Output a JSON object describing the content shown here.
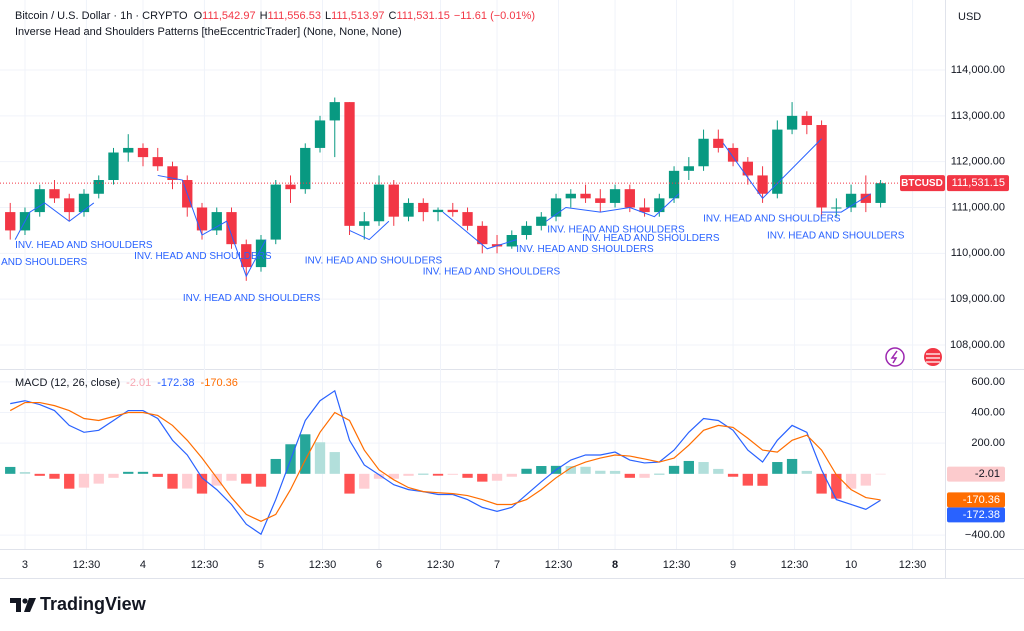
{
  "chart_data": [
    {
      "type": "candlestick",
      "title": "Bitcoin / U.S. Dollar · 1h · CRYPTO",
      "ohlc_legend": [
        {
          "key": "O",
          "text": "111,542.97"
        },
        {
          "key": "H",
          "text": "111,556.53"
        },
        {
          "key": "L",
          "text": "111,513.97"
        },
        {
          "key": "C",
          "text": "111,531.15"
        }
      ],
      "change": "−11.61 (−0.01%)",
      "subtitle": "Inverse Head and Shoulders Patterns [theEccentricTrader] (None, None, None)",
      "currency": "USD",
      "symbol": "BTCUSD",
      "last_label": "111,531.15",
      "up_color": "#089981",
      "down_color": "#f23645",
      "x": [
        -3,
        0,
        3,
        6,
        9,
        12,
        15,
        18,
        21,
        24,
        27,
        30,
        33,
        36,
        39,
        42,
        45,
        48,
        51,
        54,
        57,
        60,
        63,
        66,
        69,
        72,
        75,
        78,
        81,
        84,
        87,
        90,
        93,
        96,
        99,
        102,
        105,
        108,
        111,
        114,
        117,
        120,
        123,
        126,
        129,
        132,
        135,
        138,
        141,
        144,
        147,
        150,
        153,
        156,
        159,
        162,
        165,
        168,
        171,
        174
      ],
      "open": [
        110900,
        110500,
        110900,
        111400,
        111200,
        110900,
        111300,
        111600,
        112200,
        112300,
        112100,
        111900,
        111600,
        111000,
        110500,
        110900,
        110200,
        109700,
        110300,
        111500,
        111400,
        112300,
        112900,
        113300,
        110600,
        110700,
        111500,
        110800,
        111100,
        110900,
        110950,
        110900,
        110600,
        110200,
        110150,
        110400,
        110600,
        110800,
        111200,
        111300,
        111200,
        111100,
        111400,
        111000,
        110900,
        111200,
        111800,
        111900,
        112500,
        112300,
        112000,
        111700,
        111300,
        112700,
        113000,
        112800,
        111000,
        111000,
        111300,
        111100
      ],
      "high": [
        111100,
        111000,
        111500,
        111600,
        111300,
        111400,
        111700,
        112300,
        112600,
        112400,
        112300,
        112000,
        111700,
        111100,
        111000,
        111000,
        110300,
        110400,
        111600,
        111700,
        112400,
        113000,
        113400,
        113300,
        110900,
        111700,
        111600,
        111200,
        111200,
        111000,
        111100,
        111000,
        110700,
        110400,
        110500,
        110700,
        110900,
        111300,
        111400,
        111500,
        111400,
        111500,
        111500,
        111200,
        111300,
        111900,
        112100,
        112700,
        112700,
        112400,
        112100,
        111900,
        112900,
        113300,
        113100,
        112900,
        111200,
        111500,
        111700,
        111600
      ],
      "low": [
        110300,
        110400,
        110800,
        111100,
        110700,
        110800,
        111200,
        111500,
        112000,
        111900,
        111800,
        111400,
        110800,
        110300,
        110400,
        110100,
        109400,
        109600,
        110200,
        111100,
        111300,
        112200,
        112100,
        110400,
        110300,
        110600,
        110600,
        110700,
        110700,
        110700,
        110800,
        110500,
        110000,
        110000,
        110100,
        110300,
        110500,
        110700,
        111000,
        111100,
        110900,
        111000,
        110900,
        110800,
        110800,
        111100,
        111600,
        111800,
        112200,
        111900,
        111500,
        111100,
        111200,
        112600,
        112600,
        110800,
        110800,
        110900,
        110900,
        111000
      ],
      "close": [
        110500,
        110900,
        111400,
        111200,
        110900,
        111300,
        111600,
        112200,
        112300,
        112100,
        111900,
        111600,
        111000,
        110500,
        110900,
        110200,
        109700,
        110300,
        111500,
        111400,
        112300,
        112900,
        113300,
        110600,
        110700,
        111500,
        110800,
        111100,
        110900,
        110950,
        110900,
        110600,
        110200,
        110150,
        110400,
        110600,
        110800,
        111200,
        111300,
        111200,
        111100,
        111400,
        111000,
        110900,
        111200,
        111800,
        111900,
        112500,
        112300,
        112000,
        111700,
        111300,
        112700,
        113000,
        112800,
        111000,
        111000,
        111300,
        111100,
        111531.15
      ],
      "ylim": [
        107498,
        115528
      ],
      "yticks": [
        {
          "value": 108000,
          "label": "108,000.00"
        },
        {
          "value": 109000,
          "label": "109,000.00"
        },
        {
          "value": 110000,
          "label": "110,000.00"
        },
        {
          "value": 111000,
          "label": "111,000.00"
        },
        {
          "value": 112000,
          "label": "112,000.00"
        },
        {
          "value": 113000,
          "label": "113,000.00"
        },
        {
          "value": 114000,
          "label": "114,000.00"
        }
      ],
      "annotation_color": "#2962ff",
      "annotations": [
        {
          "text": "INV. HEAD AND SHOULDERS",
          "x": -2.0,
          "y": 110170
        },
        {
          "text": "INV. HEAD AND SHOULDERS",
          "x": -15.3,
          "y": 109800
        },
        {
          "text": "INV. HEAD AND SHOULDERS",
          "x": 22.2,
          "y": 109930
        },
        {
          "text": "INV. HEAD AND SHOULDERS",
          "x": 32.1,
          "y": 109020
        },
        {
          "text": "INV. HEAD AND SHOULDERS",
          "x": 56.9,
          "y": 109840
        },
        {
          "text": "INV. HEAD AND SHOULDERS",
          "x": 80.9,
          "y": 109600
        },
        {
          "text": "INV. HEAD AND SHOULDERS",
          "x": 99.9,
          "y": 110090
        },
        {
          "text": "INV. HEAD AND SHOULDERS",
          "x": 106.2,
          "y": 110510
        },
        {
          "text": "INV. HEAD AND SHOULDERS",
          "x": 113.3,
          "y": 110330
        },
        {
          "text": "INV. HEAD AND SHOULDERS",
          "x": 137.9,
          "y": 110750
        },
        {
          "text": "INV. HEAD AND SHOULDERS",
          "x": 150.9,
          "y": 110380
        }
      ],
      "pattern_lines": [
        [
          [
            -2,
            110300
          ],
          [
            1,
            110900
          ],
          [
            4,
            111100
          ],
          [
            9,
            110700
          ],
          [
            14,
            111100
          ]
        ],
        [
          [
            27,
            111700
          ],
          [
            32,
            111600
          ],
          [
            36,
            110400
          ],
          [
            41,
            110700
          ],
          [
            45,
            109500
          ],
          [
            49,
            110300
          ]
        ],
        [
          [
            66,
            110500
          ],
          [
            70,
            110300
          ],
          [
            74,
            110700
          ]
        ],
        [
          [
            85,
            110900
          ],
          [
            94,
            110100
          ],
          [
            100,
            110300
          ]
        ],
        [
          [
            106,
            110700
          ],
          [
            110,
            111000
          ],
          [
            117,
            110900
          ],
          [
            123,
            111000
          ],
          [
            128,
            110800
          ],
          [
            133,
            111300
          ]
        ],
        [
          [
            142,
            112400
          ],
          [
            150,
            111200
          ],
          [
            162,
            112500
          ]
        ],
        [
          [
            162,
            110900
          ],
          [
            166,
            110900
          ],
          [
            172,
            111300
          ]
        ]
      ]
    },
    {
      "type": "macd",
      "title": "MACD (12, 26, close)",
      "x": [
        -3,
        0,
        3,
        6,
        9,
        12,
        15,
        18,
        21,
        24,
        27,
        30,
        33,
        36,
        39,
        42,
        45,
        48,
        51,
        54,
        57,
        60,
        63,
        66,
        69,
        72,
        75,
        78,
        81,
        84,
        87,
        90,
        93,
        96,
        99,
        102,
        105,
        108,
        111,
        114,
        117,
        120,
        123,
        126,
        129,
        132,
        135,
        138,
        141,
        144,
        147,
        150,
        153,
        156,
        159,
        162,
        165,
        168,
        171,
        174
      ],
      "series": [
        {
          "kind": "histogram",
          "colors": [
            "#26a69a",
            "#b2dfdb",
            "#ffcdd2",
            "#ff5252"
          ],
          "color": "#f7a9b4",
          "last_label": "-2.01",
          "values": [
            45,
            12,
            -13,
            -32,
            -97,
            -90,
            -64,
            -26,
            13,
            13,
            -20,
            -97,
            -96,
            -129,
            -77,
            -45,
            -64,
            -84,
            97,
            193,
            258,
            206,
            142,
            -129,
            -97,
            -32,
            -32,
            -13,
            0,
            -12,
            -6,
            -26,
            -51,
            -45,
            -19,
            33,
            51,
            52,
            51,
            46,
            20,
            19,
            -26,
            -26,
            0,
            52,
            84,
            77,
            32,
            -19,
            -77,
            -78,
            77,
            97,
            19,
            -129,
            -162,
            -97,
            -77,
            -2.01
          ]
        },
        {
          "kind": "line",
          "color": "#2962ff",
          "last_label": "-172.38",
          "values": [
            458,
            477,
            452,
            413,
            316,
            271,
            284,
            348,
            413,
            413,
            361,
            219,
            123,
            -26,
            -103,
            -200,
            -329,
            -394,
            -168,
            90,
            348,
            477,
            542,
            219,
            58,
            -6,
            -71,
            -103,
            -116,
            -135,
            -135,
            -168,
            -219,
            -245,
            -219,
            -135,
            -52,
            26,
            90,
            123,
            123,
            142,
            90,
            71,
            77,
            155,
            271,
            361,
            348,
            284,
            155,
            77,
            219,
            316,
            271,
            26,
            -168,
            -200,
            -232,
            -172.38
          ]
        },
        {
          "kind": "line",
          "color": "#ff6d00",
          "last_label": "-170.36",
          "values": [
            413,
            465,
            465,
            445,
            413,
            361,
            348,
            374,
            400,
            400,
            381,
            316,
            219,
            103,
            -26,
            -155,
            -265,
            -310,
            -265,
            -103,
            90,
            271,
            400,
            348,
            155,
            26,
            -39,
            -90,
            -116,
            -123,
            -129,
            -142,
            -168,
            -200,
            -200,
            -168,
            -103,
            -26,
            39,
            77,
            103,
            123,
            116,
            97,
            77,
            103,
            187,
            284,
            316,
            303,
            232,
            155,
            142,
            219,
            252,
            155,
            -6,
            -103,
            -155,
            -170.36
          ]
        }
      ],
      "ylim": [
        -484,
        671
      ],
      "yticks": [
        {
          "value": -400,
          "label": "−400.00"
        },
        {
          "value": 200,
          "label": "200.00"
        },
        {
          "value": 400,
          "label": "400.00"
        },
        {
          "value": 600,
          "label": "600.00"
        }
      ],
      "xlim": [
        -5.08,
        187.1
      ],
      "xticks": [
        {
          "value": 0,
          "label": "3"
        },
        {
          "value": 12.5,
          "label": "12:30"
        },
        {
          "value": 24,
          "label": "4"
        },
        {
          "value": 36.5,
          "label": "12:30"
        },
        {
          "value": 48,
          "label": "5"
        },
        {
          "value": 60.5,
          "label": "12:30"
        },
        {
          "value": 72,
          "label": "6"
        },
        {
          "value": 84.5,
          "label": "12:30"
        },
        {
          "value": 96,
          "label": "7"
        },
        {
          "value": 108.5,
          "label": "12:30"
        },
        {
          "value": 120,
          "label": "8",
          "bold": true
        },
        {
          "value": 132.5,
          "label": "12:30"
        },
        {
          "value": 144,
          "label": "9"
        },
        {
          "value": 156.5,
          "label": "12:30"
        },
        {
          "value": 168,
          "label": "10"
        },
        {
          "value": 180.5,
          "label": "12:30"
        }
      ],
      "grid": true
    }
  ],
  "footer": {
    "brand": "TradingView"
  }
}
